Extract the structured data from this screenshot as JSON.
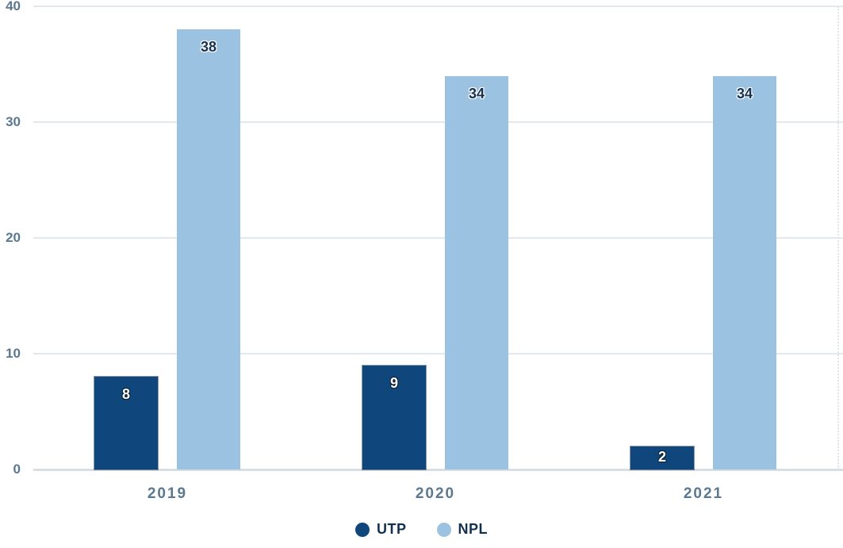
{
  "chart_data": {
    "type": "bar",
    "categories": [
      "2019",
      "2020",
      "2021"
    ],
    "series": [
      {
        "name": "UTP",
        "color": "#0f477c",
        "label_color": "#ffffff",
        "label_outline": "#0a2239",
        "values": [
          8,
          9,
          2
        ]
      },
      {
        "name": "NPL",
        "color": "#9bc3e1",
        "label_color": "#16304f",
        "label_outline": "#ffffff",
        "values": [
          38,
          34,
          34
        ]
      }
    ],
    "ylim": [
      0,
      40
    ],
    "yticks": [
      0,
      10,
      20,
      30,
      40
    ],
    "grid": true,
    "legend_position": "bottom",
    "axis_label_color": "#5a7890",
    "gridline_color": "#e3e8ec",
    "baseline_color": "#d7dfe6",
    "legend_text_color": "#12304f"
  }
}
